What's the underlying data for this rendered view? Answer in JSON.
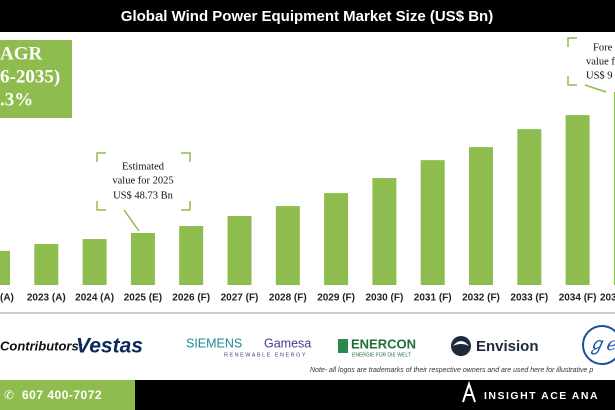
{
  "header": {
    "title": "Global Wind Power Equipment Market Size (US$ Bn)"
  },
  "chart_data": {
    "type": "bar",
    "categories": [
      "(A)",
      "2023 (A)",
      "2024 (A)",
      "2025 (E)",
      "2026 (F)",
      "2027 (F)",
      "2028 (F)",
      "2029 (F)",
      "2030 (F)",
      "2031 (F)",
      "2032 (F)",
      "2033 (F)",
      "2034 (F)",
      "203"
    ],
    "values": [
      32,
      38.4,
      43.1,
      48.73,
      55.3,
      64.7,
      74,
      86.2,
      100.3,
      117.1,
      129.3,
      146.2,
      159.3,
      181
    ],
    "color": "#8fbc4f"
  },
  "cagr": {
    "lines": [
      "AGR",
      "6-2035)",
      ".3%"
    ]
  },
  "callouts": [
    {
      "lines": [
        "Estimated",
        "value for 2025",
        "US$ 48.73 Bn"
      ]
    },
    {
      "lines": [
        "Fore",
        "value f",
        "US$ 9"
      ]
    }
  ],
  "contributors": {
    "label": "Contributors:",
    "logos": [
      "Vestas",
      "SIEMENS",
      "Gamesa",
      "RENEWABLE ENERGY",
      "ENERCON",
      "ENERGIE FÜR DIE WELT",
      "Envision"
    ]
  },
  "note": "Note- all logos are trademarks of their respective owners and are used here for illustrative p",
  "footer": {
    "phone": "607 400-7072",
    "brand": "INSIGHT ACE ANA"
  }
}
